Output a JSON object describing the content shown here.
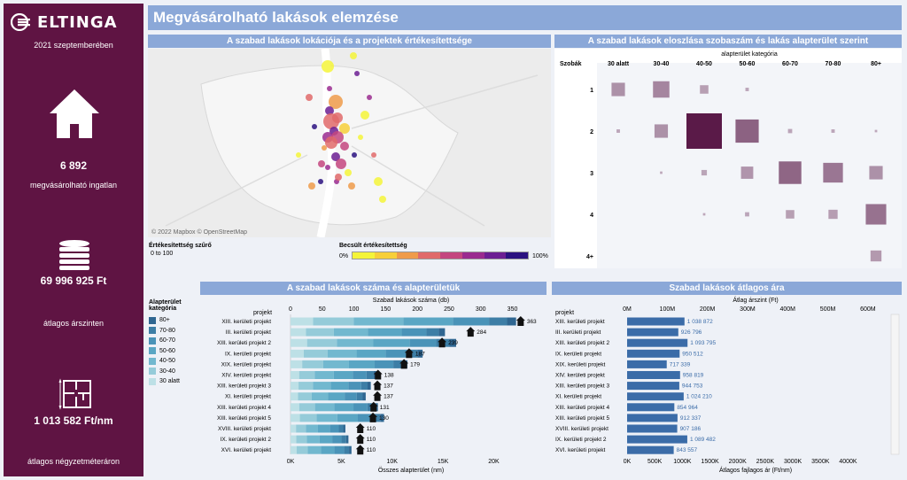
{
  "brand": {
    "name": "ELTINGA"
  },
  "sidebar": {
    "date": "2021 szeptemberében",
    "count_value": "6 892",
    "count_label": "megvásárolható ingatlan",
    "price_value": "69 996 925 Ft",
    "price_label": "átlagos árszinten",
    "sqm_value": "1 013 582 Ft/nm",
    "sqm_label": "átlagos négyzetméteráron"
  },
  "page_title": "Megvásárolható lakások elemzése",
  "panels": {
    "map_title": "A szabad lakások lokációja és a projektek értékesítettsége",
    "matrix_title": "A szabad lakások eloszlása szobaszám és lakás alapterület szerint",
    "count_title": "A szabad lakások száma és alapterületük",
    "price_title": "Szabad lakások átlagos ára"
  },
  "map": {
    "attribution": "© 2022 Mapbox © OpenStreetMap",
    "filter_label": "Értékesítettség szűrő",
    "filter_value": "0 to 100",
    "legend_title": "Becsült értékesítettség",
    "legend_min": "0%",
    "legend_max": "100%",
    "legend_colors": [
      "#f4f43a",
      "#f7cf3a",
      "#ef9b4a",
      "#e06a6a",
      "#c4467f",
      "#9a2b8f",
      "#6c1f93",
      "#2b1280"
    ]
  },
  "colors": {
    "sidebar_bg": "#5f1443",
    "header_bg": "#8ba8d8",
    "matrix_fill": "#5a1a48",
    "price_bar": "#3b6ca8",
    "area_palette": [
      "#2f6691",
      "#3d7ea6",
      "#4a93b8",
      "#5aa6c4",
      "#72b8cf",
      "#95cbd9",
      "#bde0e6"
    ]
  },
  "chart_data": [
    {
      "type": "heatmap",
      "title": "A szabad lakások eloszlása szobaszám és lakás alapterület szerint",
      "x_title": "alapterület kategória",
      "y_title": "Szobák",
      "x_categories": [
        "30 alatt",
        "30-40",
        "40-50",
        "50-60",
        "60-70",
        "70-80",
        "80+"
      ],
      "y_categories": [
        "1",
        "2",
        "3",
        "4",
        "4+"
      ],
      "values": [
        [
          30,
          45,
          12,
          2,
          0,
          0,
          0
        ],
        [
          2,
          30,
          210,
          90,
          3,
          2,
          1
        ],
        [
          0,
          1,
          5,
          25,
          85,
          65,
          30
        ],
        [
          0,
          0,
          1,
          3,
          12,
          14,
          70
        ],
        [
          0,
          0,
          0,
          0,
          0,
          0,
          20
        ]
      ]
    },
    {
      "type": "bar",
      "title": "A szabad lakások száma és alapterületük",
      "legend_title": "Alapterület kategória",
      "legend": [
        "80+",
        "70-80",
        "60-70",
        "50-60",
        "40-50",
        "30-40",
        "30 alatt"
      ],
      "y_header": "projekt",
      "top_axis_title": "Szabad lakások száma (db)",
      "top_ticks": [
        "0",
        "50",
        "100",
        "150",
        "200",
        "250",
        "300",
        "350"
      ],
      "bottom_axis_title": "Összes alapterület (nm)",
      "bottom_ticks": [
        "0K",
        "5K",
        "10K",
        "15K",
        "20K"
      ],
      "categories": [
        "XIII. kerületi projekt",
        "III. kerületi projekt",
        "XIII. kerületi projekt 2",
        "IX. kerületi projekt",
        "XIX. kerületi projekt",
        "XIV. kerületi projekt",
        "XIII. kerületi projekt 3",
        "XI. kerületi projekt",
        "XIII. kerületi projekt 4",
        "XIII. kerületi projekt 5",
        "XVIII. kerületi projekt",
        "IX. kerületi projekt 2",
        "XVI. kerületi projekt"
      ],
      "counts": [
        363,
        284,
        239,
        187,
        179,
        138,
        137,
        137,
        131,
        130,
        110,
        110,
        110
      ],
      "area_nm": [
        22200,
        15200,
        16300,
        13000,
        11500,
        8500,
        7900,
        7400,
        8600,
        9200,
        5400,
        5700,
        6000
      ]
    },
    {
      "type": "bar",
      "title": "Szabad lakások átlagos ára",
      "y_header": "projekt",
      "top_axis_title": "Átlag árszint (Ft)",
      "top_ticks": [
        "0M",
        "100M",
        "200M",
        "300M",
        "400M",
        "500M",
        "600M"
      ],
      "bottom_axis_title": "Átlagos fajlagos ár (Ft/nm)",
      "bottom_ticks": [
        "0K",
        "500K",
        "1000K",
        "1500K",
        "2000K",
        "2500K",
        "3000K",
        "3500K",
        "4000K"
      ],
      "categories": [
        "XIII. kerületi projekt",
        "III. kerületi projekt",
        "XIII. kerületi projekt 2",
        "IX. kerületi projekt",
        "XIX. kerületi projekt",
        "XIV. kerületi projekt",
        "XIII. kerületi projekt 3",
        "XI. kerületi projekt",
        "XIII. kerületi projekt 4",
        "XIII. kerületi projekt 5",
        "XVIII. kerületi projekt",
        "IX. kerületi projekt 2",
        "XVI. kerületi projekt"
      ],
      "sqm_price": [
        1038872,
        926796,
        1093795,
        950512,
        717339,
        958819,
        944753,
        1024210,
        854964,
        912337,
        907186,
        1089482,
        843557
      ],
      "labels": [
        "1 038 872",
        "926 796",
        "1 093 795",
        "950 512",
        "717 339",
        "958 819",
        "944 753",
        "1 024 210",
        "854 964",
        "912 337",
        "907 186",
        "1 089 482",
        "843 557"
      ]
    }
  ]
}
